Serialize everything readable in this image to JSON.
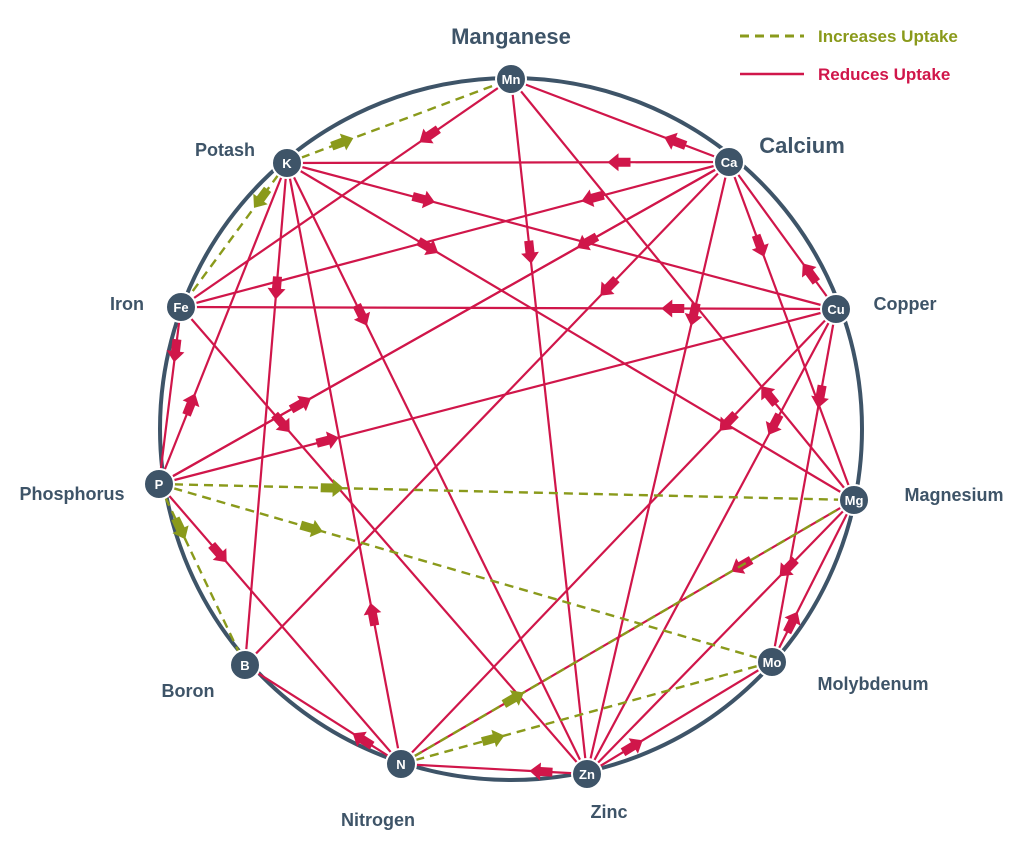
{
  "colors": {
    "circle": "#3e5468",
    "node_fill": "#3e5468",
    "reduces": "#d0164a",
    "increases": "#8a9a1b",
    "label": "#3e5468"
  },
  "legend": {
    "increases_label": "Increases Uptake",
    "reduces_label": "Reduces Uptake"
  },
  "nodes": [
    {
      "id": "Mn",
      "symbol": "Mn",
      "name": "Manganese"
    },
    {
      "id": "Ca",
      "symbol": "Ca",
      "name": "Calcium"
    },
    {
      "id": "Cu",
      "symbol": "Cu",
      "name": "Copper"
    },
    {
      "id": "Mg",
      "symbol": "Mg",
      "name": "Magnesium"
    },
    {
      "id": "Mo",
      "symbol": "Mo",
      "name": "Molybdenum"
    },
    {
      "id": "Zn",
      "symbol": "Zn",
      "name": "Zinc"
    },
    {
      "id": "N",
      "symbol": "N",
      "name": "Nitrogen"
    },
    {
      "id": "B",
      "symbol": "B",
      "name": "Boron"
    },
    {
      "id": "P",
      "symbol": "P",
      "name": "Phosphorus"
    },
    {
      "id": "Fe",
      "symbol": "Fe",
      "name": "Iron"
    },
    {
      "id": "K",
      "symbol": "K",
      "name": "Potash"
    }
  ],
  "edges": [
    {
      "from": "Mn",
      "to": "Fe",
      "type": "reduces"
    },
    {
      "from": "Mn",
      "to": "Zn",
      "type": "reduces"
    },
    {
      "from": "Ca",
      "to": "Mn",
      "type": "reduces"
    },
    {
      "from": "Ca",
      "to": "K",
      "type": "reduces"
    },
    {
      "from": "Ca",
      "to": "Fe",
      "type": "reduces"
    },
    {
      "from": "Ca",
      "to": "P",
      "type": "reduces"
    },
    {
      "from": "Ca",
      "to": "B",
      "type": "reduces"
    },
    {
      "from": "Ca",
      "to": "Zn",
      "type": "reduces"
    },
    {
      "from": "Ca",
      "to": "Mg",
      "type": "reduces"
    },
    {
      "from": "K",
      "to": "Mg",
      "type": "reduces"
    },
    {
      "from": "K",
      "to": "B",
      "type": "reduces"
    },
    {
      "from": "K",
      "to": "Zn",
      "type": "reduces"
    },
    {
      "from": "K",
      "to": "Cu",
      "type": "reduces"
    },
    {
      "from": "Fe",
      "to": "P",
      "type": "reduces"
    },
    {
      "from": "Fe",
      "to": "Zn",
      "type": "reduces"
    },
    {
      "from": "Cu",
      "to": "Fe",
      "type": "reduces"
    },
    {
      "from": "Cu",
      "to": "Ca",
      "type": "reduces"
    },
    {
      "from": "Cu",
      "to": "Mo",
      "type": "reduces"
    },
    {
      "from": "Cu",
      "to": "Zn",
      "type": "reduces"
    },
    {
      "from": "Cu",
      "to": "N",
      "type": "reduces"
    },
    {
      "from": "Mg",
      "to": "Mn",
      "type": "reduces"
    },
    {
      "from": "Mg",
      "to": "Zn",
      "type": "reduces"
    },
    {
      "from": "Mg",
      "to": "N",
      "type": "reduces"
    },
    {
      "from": "P",
      "to": "Cu",
      "type": "reduces"
    },
    {
      "from": "P",
      "to": "Ca",
      "type": "reduces"
    },
    {
      "from": "P",
      "to": "N",
      "type": "reduces"
    },
    {
      "from": "P",
      "to": "K",
      "type": "reduces"
    },
    {
      "from": "Zn",
      "to": "N",
      "type": "reduces"
    },
    {
      "from": "Zn",
      "to": "Mo",
      "type": "reduces"
    },
    {
      "from": "Mo",
      "to": "Mg",
      "type": "reduces"
    },
    {
      "from": "N",
      "to": "B",
      "type": "reduces"
    },
    {
      "from": "N",
      "to": "K",
      "type": "reduces"
    },
    {
      "from": "K",
      "to": "Mn",
      "type": "increases"
    },
    {
      "from": "K",
      "to": "Fe",
      "type": "increases"
    },
    {
      "from": "P",
      "to": "B",
      "type": "increases"
    },
    {
      "from": "P",
      "to": "Mg",
      "type": "increases"
    },
    {
      "from": "P",
      "to": "Mo",
      "type": "increases"
    },
    {
      "from": "N",
      "to": "Mg",
      "type": "increases"
    },
    {
      "from": "N",
      "to": "Mo",
      "type": "increases"
    }
  ]
}
